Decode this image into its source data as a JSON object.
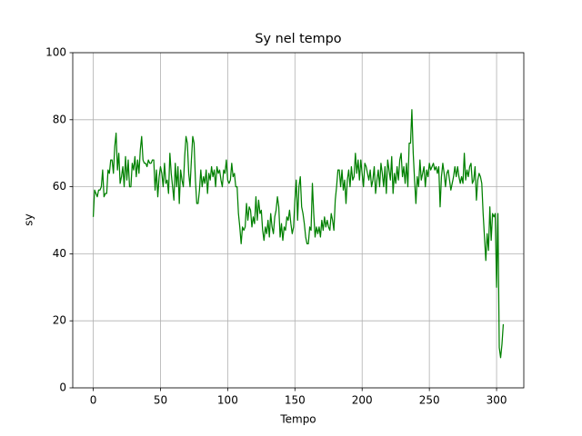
{
  "chart_data": {
    "type": "line",
    "title": "Sy nel tempo",
    "x_label": "Tempo",
    "y_label": "sy",
    "color": "#008000",
    "grid": true,
    "xlim": [
      -15.25,
      320.25
    ],
    "xticks": [
      0,
      50,
      100,
      150,
      200,
      250,
      300
    ],
    "ylim": [
      0,
      100
    ],
    "yticks": [
      0,
      20,
      40,
      60,
      80,
      100
    ],
    "x": [
      0,
      1,
      2,
      3,
      4,
      5,
      6,
      7,
      8,
      9,
      10,
      11,
      12,
      13,
      14,
      15,
      16,
      17,
      18,
      19,
      20,
      21,
      22,
      23,
      24,
      25,
      26,
      27,
      28,
      29,
      30,
      31,
      32,
      33,
      34,
      35,
      36,
      37,
      38,
      39,
      40,
      41,
      42,
      43,
      44,
      45,
      46,
      47,
      48,
      49,
      50,
      51,
      52,
      53,
      54,
      55,
      56,
      57,
      58,
      59,
      60,
      61,
      62,
      63,
      64,
      65,
      66,
      67,
      68,
      69,
      70,
      71,
      72,
      73,
      74,
      75,
      76,
      77,
      78,
      79,
      80,
      81,
      82,
      83,
      84,
      85,
      86,
      87,
      88,
      89,
      90,
      91,
      92,
      93,
      94,
      95,
      96,
      97,
      98,
      99,
      100,
      101,
      102,
      103,
      104,
      105,
      106,
      107,
      108,
      109,
      110,
      111,
      112,
      113,
      114,
      115,
      116,
      117,
      118,
      119,
      120,
      121,
      122,
      123,
      124,
      125,
      126,
      127,
      128,
      129,
      130,
      131,
      132,
      133,
      134,
      135,
      136,
      137,
      138,
      139,
      140,
      141,
      142,
      143,
      144,
      145,
      146,
      147,
      148,
      149,
      150,
      151,
      152,
      153,
      154,
      155,
      156,
      157,
      158,
      159,
      160,
      161,
      162,
      163,
      164,
      165,
      166,
      167,
      168,
      169,
      170,
      171,
      172,
      173,
      174,
      175,
      176,
      177,
      178,
      179,
      180,
      181,
      182,
      183,
      184,
      185,
      186,
      187,
      188,
      189,
      190,
      191,
      192,
      193,
      194,
      195,
      196,
      197,
      198,
      199,
      200,
      201,
      202,
      203,
      204,
      205,
      206,
      207,
      208,
      209,
      210,
      211,
      212,
      213,
      214,
      215,
      216,
      217,
      218,
      219,
      220,
      221,
      222,
      223,
      224,
      225,
      226,
      227,
      228,
      229,
      230,
      231,
      232,
      233,
      234,
      235,
      236,
      237,
      238,
      239,
      240,
      241,
      242,
      243,
      244,
      245,
      246,
      247,
      248,
      249,
      250,
      251,
      252,
      253,
      254,
      255,
      256,
      257,
      258,
      259,
      260,
      261,
      262,
      263,
      264,
      265,
      266,
      267,
      268,
      269,
      270,
      271,
      272,
      273,
      274,
      275,
      276,
      277,
      278,
      279,
      280,
      281,
      282,
      283,
      284,
      285,
      286,
      287,
      288,
      289,
      290,
      291,
      292,
      293,
      294,
      295,
      296,
      297,
      298,
      299,
      300,
      301,
      302,
      303,
      304,
      305
    ],
    "values": [
      51,
      59,
      58,
      57,
      59,
      59,
      60,
      65,
      57,
      58,
      58,
      65,
      64,
      68,
      68,
      64,
      72,
      76,
      65,
      70,
      61,
      63,
      66,
      60,
      69,
      62,
      68,
      60,
      60,
      67,
      65,
      69,
      63,
      68,
      64,
      71,
      75,
      68,
      67,
      67,
      66,
      68,
      67,
      67,
      68,
      68,
      59,
      65,
      57,
      63,
      66,
      64,
      60,
      67,
      61,
      62,
      58,
      70,
      64,
      60,
      56,
      67,
      60,
      66,
      55,
      65,
      62,
      60,
      69,
      75,
      73,
      64,
      60,
      68,
      75,
      73,
      62,
      55,
      55,
      59,
      65,
      60,
      63,
      61,
      65,
      58,
      64,
      62,
      66,
      63,
      65,
      60,
      66,
      64,
      65,
      62,
      60,
      65,
      64,
      68,
      62,
      61,
      62,
      67,
      63,
      64,
      60,
      60,
      52,
      48,
      43,
      48,
      47,
      48,
      55,
      50,
      54,
      53,
      48,
      51,
      49,
      57,
      50,
      56,
      52,
      53,
      47,
      44,
      48,
      46,
      50,
      45,
      52,
      48,
      46,
      51,
      53,
      57,
      54,
      45,
      49,
      44,
      48,
      47,
      51,
      50,
      53,
      49,
      46,
      48,
      56,
      62,
      50,
      60,
      63,
      54,
      52,
      49,
      45,
      43,
      43,
      48,
      47,
      61,
      52,
      45,
      48,
      46,
      48,
      45,
      50,
      47,
      51,
      48,
      50,
      48,
      47,
      52,
      50,
      47,
      56,
      60,
      65,
      65,
      60,
      65,
      59,
      62,
      55,
      62,
      65,
      60,
      66,
      62,
      63,
      70,
      64,
      68,
      62,
      68,
      64,
      60,
      67,
      66,
      64,
      62,
      65,
      60,
      62,
      66,
      58,
      62,
      65,
      60,
      67,
      64,
      60,
      66,
      58,
      68,
      65,
      62,
      69,
      58,
      64,
      61,
      66,
      62,
      68,
      70,
      63,
      66,
      61,
      67,
      60,
      73,
      73,
      83,
      70,
      62,
      55,
      63,
      60,
      68,
      62,
      64,
      66,
      60,
      65,
      63,
      67,
      65,
      66,
      67,
      65,
      66,
      64,
      66,
      54,
      63,
      67,
      64,
      60,
      64,
      65,
      62,
      59,
      61,
      63,
      66,
      63,
      66,
      63,
      61,
      63,
      61,
      70,
      62,
      65,
      63,
      66,
      67,
      61,
      62,
      66,
      56,
      62,
      64,
      63,
      61,
      52,
      45,
      38,
      46,
      41,
      54,
      44,
      52,
      51,
      52,
      30,
      52,
      12,
      9,
      13,
      19
    ]
  }
}
